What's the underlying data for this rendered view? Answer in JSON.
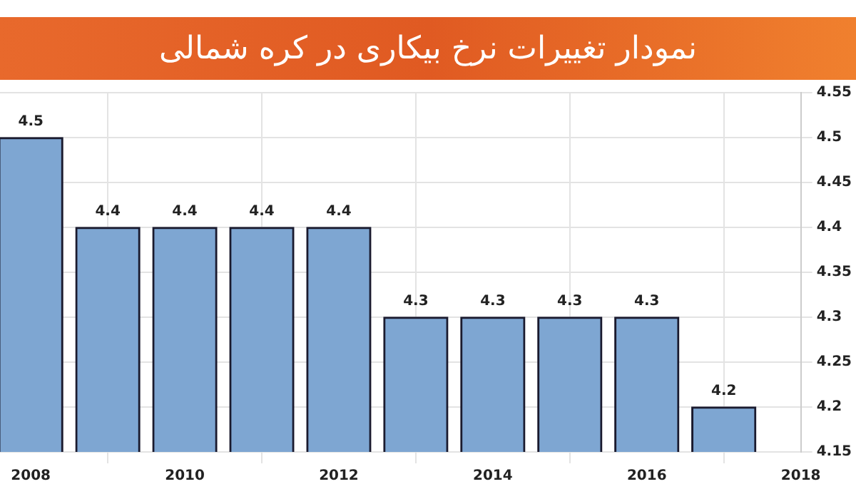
{
  "chart_data": {
    "type": "bar",
    "title": "نمودار تغییرات نرخ بیکاری در کره شمالی",
    "x": [
      2008,
      2009,
      2010,
      2011,
      2012,
      2013,
      2014,
      2015,
      2016,
      2017
    ],
    "values": [
      4.5,
      4.4,
      4.4,
      4.4,
      4.4,
      4.3,
      4.3,
      4.3,
      4.3,
      4.2
    ],
    "color": "#7ea6d2",
    "xlim": [
      2007.6,
      2018
    ],
    "xticks": [
      2008,
      2010,
      2012,
      2014,
      2016,
      2018
    ],
    "ylim": [
      4.15,
      4.55
    ],
    "yticks": [
      4.15,
      4.2,
      4.25,
      4.3,
      4.35,
      4.4,
      4.45,
      4.5,
      4.55
    ],
    "grid": true,
    "data_labels": true
  }
}
